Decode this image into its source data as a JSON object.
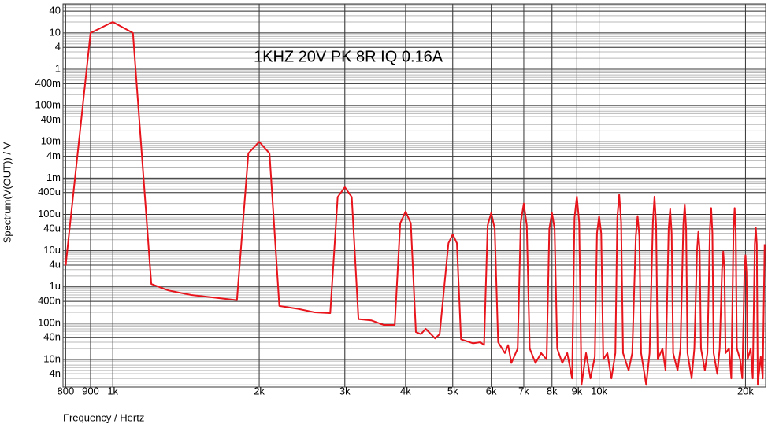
{
  "chart_data": {
    "type": "line",
    "annotation": "1KHZ 20V PK 8R IQ 0.16A",
    "annotation_color": "#1a1adc",
    "xlabel": "Frequency / Hertz",
    "ylabel": "Spectrum(V(OUT)) / V",
    "xscale": "log",
    "yscale": "log",
    "grid": true,
    "xlim": [
      790,
      22000
    ],
    "ylim": [
      1.74e-09,
      63
    ],
    "xticks": [
      800,
      900,
      {
        "value": 1000,
        "label": "1k"
      },
      {
        "value": 2000,
        "label": "2k"
      },
      {
        "value": 3000,
        "label": "3k"
      },
      {
        "value": 4000,
        "label": "4k"
      },
      {
        "value": 5000,
        "label": "5k"
      },
      {
        "value": 6000,
        "label": "6k"
      },
      {
        "value": 7000,
        "label": "7k"
      },
      {
        "value": 8000,
        "label": "8k"
      },
      {
        "value": 9000,
        "label": "9k"
      },
      {
        "value": 10000,
        "label": "10k"
      },
      {
        "value": 20000,
        "label": "20k"
      }
    ],
    "yticks": [
      40,
      10,
      4,
      1,
      {
        "value": 0.4,
        "label": "400m"
      },
      {
        "value": 0.1,
        "label": "100m"
      },
      {
        "value": 0.04,
        "label": "40m"
      },
      {
        "value": 0.01,
        "label": "10m"
      },
      {
        "value": 0.004,
        "label": "4m"
      },
      {
        "value": 0.001,
        "label": "1m"
      },
      {
        "value": 0.0004,
        "label": "400u"
      },
      {
        "value": 0.0001,
        "label": "100u"
      },
      {
        "value": 4e-05,
        "label": "40u"
      },
      {
        "value": 1e-05,
        "label": "10u"
      },
      {
        "value": 4e-06,
        "label": "4u"
      },
      {
        "value": 1e-06,
        "label": "1u"
      },
      {
        "value": 4e-07,
        "label": "400n"
      },
      {
        "value": 1e-07,
        "label": "100n"
      },
      {
        "value": 4e-08,
        "label": "40n"
      },
      {
        "value": 1e-08,
        "label": "10n"
      },
      {
        "value": 4e-09,
        "label": "4n"
      }
    ],
    "x": [
      800,
      900,
      1000,
      1100,
      1200,
      1300,
      1450,
      1800,
      1900,
      2000,
      2100,
      2200,
      2400,
      2600,
      2800,
      2900,
      3000,
      3100,
      3200,
      3400,
      3600,
      3800,
      3900,
      4000,
      4100,
      4200,
      4300,
      4400,
      4600,
      4700,
      4900,
      5000,
      5100,
      5200,
      5500,
      5700,
      5800,
      5900,
      6000,
      6100,
      6200,
      6400,
      6500,
      6600,
      6800,
      6900,
      7000,
      7100,
      7200,
      7400,
      7600,
      7800,
      7900,
      8000,
      8100,
      8200,
      8400,
      8600,
      8800,
      8900,
      9000,
      9100,
      9200,
      9400,
      9600,
      9800,
      9900,
      10000,
      10100,
      10200,
      10400,
      10600,
      10800,
      10900,
      11000,
      11100,
      11200,
      11500,
      11700,
      11900,
      12000,
      12100,
      12200,
      12500,
      12700,
      12900,
      13000,
      13100,
      13200,
      13500,
      13700,
      13900,
      14000,
      14100,
      14200,
      14500,
      14700,
      14900,
      15000,
      15100,
      15200,
      15500,
      15700,
      15900,
      16000,
      16100,
      16200,
      16500,
      16700,
      16900,
      17000,
      17100,
      17200,
      17500,
      17700,
      17900,
      18000,
      18100,
      18200,
      18500,
      18700,
      18900,
      19000,
      19100,
      19200,
      19500,
      19700,
      19900,
      20000,
      20100,
      20200,
      20500,
      20700,
      20900,
      21000,
      21100,
      21200,
      21500,
      21700,
      21900
    ],
    "series": [
      {
        "name": "V(OUT)",
        "color": "#e8141c",
        "values": [
          3.9e-06,
          10,
          20,
          10,
          1.2e-06,
          8e-07,
          6e-07,
          4.3e-07,
          0.0048,
          0.01,
          0.0048,
          3e-07,
          2.5e-07,
          2e-07,
          1.9e-07,
          0.0003,
          0.00056,
          0.0003,
          1.3e-07,
          1.2e-07,
          9e-08,
          9e-08,
          5.7e-05,
          0.00012,
          5.7e-05,
          5.7e-08,
          5e-08,
          7e-08,
          3.8e-08,
          5e-08,
          1.6e-05,
          2.8e-05,
          1.6e-05,
          3.6e-08,
          2.8e-08,
          3e-08,
          2.5e-08,
          5e-05,
          0.00011,
          4e-05,
          3e-08,
          1.5e-08,
          2.5e-08,
          8e-09,
          2e-08,
          6e-05,
          0.0002,
          5e-05,
          2e-08,
          8e-09,
          1.5e-08,
          1e-08,
          4e-05,
          0.00011,
          4e-05,
          2e-08,
          8e-09,
          1.5e-08,
          3e-09,
          8e-05,
          0.00031,
          6e-05,
          2e-09,
          1.5e-08,
          3e-09,
          1.2e-08,
          3e-05,
          9e-05,
          3e-05,
          1e-08,
          1.5e-08,
          3e-09,
          1.5e-08,
          8e-05,
          0.00035,
          6e-05,
          1.5e-08,
          5e-09,
          1.5e-08,
          2.5e-05,
          9e-05,
          2.5e-05,
          1.5e-08,
          2e-09,
          1.5e-08,
          6e-05,
          0.00031,
          5e-05,
          1e-08,
          2e-08,
          5e-09,
          4e-05,
          0.00014,
          3e-05,
          1.5e-08,
          5e-09,
          2e-08,
          5e-05,
          0.00019,
          4e-05,
          1.5e-08,
          3e-09,
          2e-08,
          1e-05,
          3.3e-05,
          1e-05,
          2e-08,
          5e-09,
          1.5e-08,
          4e-05,
          0.00015,
          3e-05,
          1.5e-08,
          4e-09,
          2e-08,
          3e-06,
          9.5e-06,
          3e-06,
          1.5e-08,
          2e-08,
          3e-09,
          4e-05,
          0.00015,
          3e-05,
          2e-08,
          1e-08,
          3e-09,
          2.5e-06,
          7.5e-06,
          2.5e-06,
          1e-08,
          2e-08,
          3e-09,
          1.5e-05,
          4.3e-05,
          1.5e-05,
          2e-09,
          1.2e-08,
          3e-09,
          1.5e-05
        ]
      }
    ]
  }
}
